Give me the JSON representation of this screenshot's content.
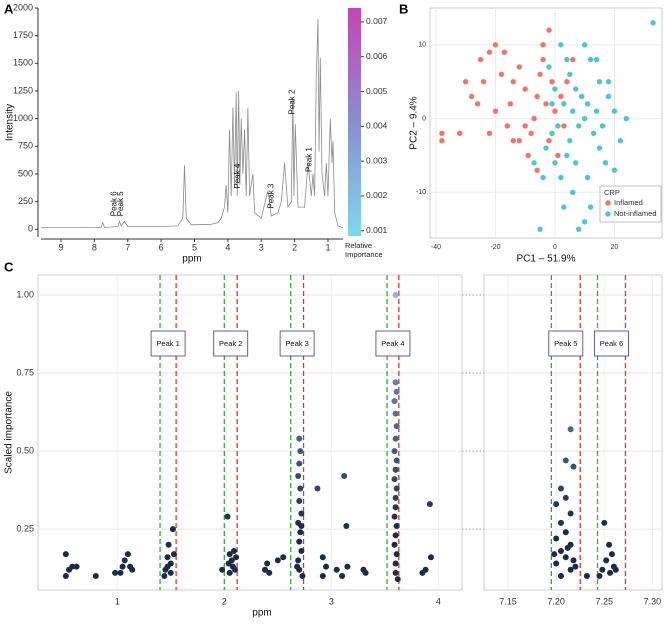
{
  "chart_data": [
    {
      "type": "line",
      "panel_label": "A",
      "x_label": "ppm",
      "y_label": "Intensity",
      "color": "#8c8c8c",
      "x": [
        9.6,
        9.0,
        8.5,
        8.0,
        7.8,
        7.75,
        7.7,
        7.5,
        7.3,
        7.25,
        7.2,
        7.1,
        7.0,
        6.5,
        6.0,
        5.5,
        5.35,
        5.3,
        5.25,
        5.1,
        4.5,
        4.3,
        4.2,
        4.1,
        4.05,
        4.0,
        3.95,
        3.9,
        3.85,
        3.8,
        3.75,
        3.72,
        3.68,
        3.64,
        3.6,
        3.55,
        3.5,
        3.45,
        3.4,
        3.35,
        3.25,
        3.2,
        3.0,
        2.8,
        2.7,
        2.5,
        2.4,
        2.3,
        2.2,
        2.1,
        2.05,
        2.02,
        1.98,
        1.9,
        1.7,
        1.6,
        1.5,
        1.45,
        1.4,
        1.35,
        1.3,
        1.27,
        1.23,
        1.18,
        1.1,
        1.05,
        1.0,
        0.93,
        0.88,
        0.85,
        0.8,
        0.7,
        0.55
      ],
      "values": [
        15,
        15,
        15,
        16,
        18,
        60,
        18,
        20,
        25,
        70,
        30,
        70,
        25,
        25,
        25,
        30,
        100,
        580,
        100,
        40,
        45,
        60,
        100,
        200,
        400,
        150,
        900,
        300,
        1100,
        400,
        1240,
        300,
        1250,
        400,
        1000,
        500,
        900,
        300,
        1100,
        300,
        500,
        150,
        100,
        350,
        120,
        150,
        250,
        600,
        200,
        250,
        1180,
        300,
        950,
        200,
        200,
        600,
        300,
        500,
        300,
        1400,
        1900,
        700,
        1550,
        500,
        300,
        600,
        300,
        1000,
        600,
        800,
        150,
        30,
        15
      ],
      "xlim": [
        9.6,
        0.55
      ],
      "xticks": [
        9,
        8,
        7,
        6,
        5,
        4,
        3,
        2,
        1
      ],
      "ylim": [
        -70,
        2000
      ],
      "yticks": [
        0,
        250,
        500,
        750,
        1000,
        1250,
        1500,
        1750,
        2000
      ],
      "annotations": [
        {
          "text": "Peak 1",
          "x": 1.55,
          "y": 630
        },
        {
          "text": "Peak 2",
          "x": 2.07,
          "y": 1150
        },
        {
          "text": "Peak 3",
          "x": 2.7,
          "y": 300
        },
        {
          "text": "Peak 4",
          "x": 3.7,
          "y": 480
        },
        {
          "text": "Peak 5",
          "x": 7.2,
          "y": 230
        },
        {
          "text": "Peak 6",
          "x": 7.4,
          "y": 230
        }
      ],
      "colorbar": {
        "label": "Relative Importance",
        "lim": [
          0.00085,
          0.0074
        ],
        "ticks": [
          0.001,
          0.002,
          0.003,
          0.004,
          0.005,
          0.006,
          0.007
        ],
        "colors": [
          "#7fd8ea",
          "#8a8ed0",
          "#c445b5"
        ]
      }
    },
    {
      "type": "scatter",
      "panel_label": "B",
      "x_label": "PC1 – 51.9%",
      "y_label": "PC2 – 9.4%",
      "xlim": [
        -42,
        36
      ],
      "xticks": [
        -40,
        -20,
        0,
        20
      ],
      "ylim": [
        -16.2,
        15
      ],
      "yticks": [
        -10,
        0,
        10
      ],
      "grid": true,
      "legend_title": "CRP",
      "legend": "bottom-right",
      "series": [
        {
          "name": "Inflamed",
          "color": "#f0746b",
          "x": [
            -38,
            -38,
            -32,
            -30,
            -28,
            -26,
            -25,
            -22,
            -20,
            -18,
            -17,
            -15,
            -14,
            -12,
            -10,
            -10,
            -8,
            -7,
            -6,
            -5,
            -4,
            -3,
            -2,
            -1,
            0,
            1,
            2,
            4,
            -12,
            -16,
            -20,
            -22,
            -9,
            -6,
            -4,
            -2,
            3,
            6,
            -24,
            -14
          ],
          "values": [
            -2,
            -3,
            -2,
            5,
            3,
            2,
            8,
            9,
            10,
            6,
            9,
            2,
            5,
            7,
            4,
            -1,
            -2,
            0,
            3,
            6,
            8,
            2,
            -3,
            5,
            1,
            -5,
            3,
            5,
            -3,
            -1,
            1,
            -2,
            -5,
            -7,
            10,
            12,
            -1,
            8,
            5,
            -3
          ]
        },
        {
          "name": "Not-inflamed",
          "color": "#4fc6cb",
          "x": [
            33,
            10,
            12,
            15,
            18,
            20,
            22,
            5,
            7,
            3,
            1,
            -1,
            -3,
            0,
            2,
            5,
            8,
            10,
            13,
            15,
            17,
            20,
            6,
            -5,
            8,
            10,
            12,
            4,
            9,
            11,
            14,
            16,
            4,
            2,
            -2,
            0,
            6,
            -4,
            -7,
            3,
            14,
            18,
            24,
            7,
            11,
            -1
          ],
          "values": [
            13,
            10,
            8,
            5,
            3,
            1,
            -3,
            6,
            4,
            2,
            -1,
            -2,
            -4,
            -6,
            -8,
            -3,
            -1,
            0,
            -2,
            -4,
            -6,
            -7,
            -10,
            -15,
            -15,
            -14,
            -12,
            -5,
            3,
            2,
            1,
            -1,
            8,
            10,
            7,
            4,
            1,
            -8,
            -6,
            -12,
            8,
            5,
            0,
            -6,
            -8,
            2
          ]
        }
      ]
    },
    {
      "type": "scatter",
      "panel_label": "C",
      "x_label": "ppm",
      "y_label": "Scaled importance",
      "ylim": [
        0.055,
        1.064
      ],
      "yticks": [
        {
          "value": 0.25,
          "label": "0.25"
        },
        {
          "value": 0.5,
          "label": "0.50"
        },
        {
          "value": 0.75,
          "label": "0.75"
        },
        {
          "value": 1,
          "label": "1.00"
        }
      ],
      "grid": true,
      "low_color": "#1c2b48",
      "high_color": "#8fb3e3",
      "start_color": "#3aa63a",
      "end_color": "#e0352b",
      "panels": [
        {
          "xlim": [
            0.26,
            4.22
          ],
          "xticks": [
            1,
            2,
            3,
            4
          ],
          "x": [
            0.52,
            0.55,
            0.58,
            0.52,
            0.62,
            0.8,
            0.98,
            1.03,
            1.07,
            1.1,
            1.12,
            1.14,
            1.05,
            1.45,
            1.47,
            1.48,
            1.5,
            1.52,
            1.5,
            1.47,
            1.53,
            1.44,
            2.03,
            2.05,
            2.07,
            2.08,
            2.1,
            2.05,
            2.09,
            2.04,
            2.11,
            1.98,
            2.4,
            2.42,
            2.38,
            2.5,
            2.55,
            2.7,
            2.71,
            2.7,
            2.69,
            2.71,
            2.7,
            2.72,
            2.69,
            2.71,
            2.7,
            2.72,
            2.69,
            2.7,
            2.73,
            2.68,
            2.72,
            2.87,
            2.92,
            2.95,
            2.92,
            3.05,
            3.1,
            3.12,
            3.14,
            3.15,
            3.3,
            3.32,
            3.6,
            3.6,
            3.61,
            3.59,
            3.6,
            3.61,
            3.6,
            3.59,
            3.61,
            3.6,
            3.59,
            3.61,
            3.6,
            3.6,
            3.59,
            3.61,
            3.6,
            3.59,
            3.61,
            3.6,
            3.6,
            3.62,
            3.85,
            3.88,
            3.92,
            3.93
          ],
          "values": [
            0.17,
            0.12,
            0.13,
            0.1,
            0.13,
            0.1,
            0.11,
            0.11,
            0.15,
            0.17,
            0.13,
            0.12,
            0.13,
            0.12,
            0.16,
            0.2,
            0.14,
            0.25,
            0.11,
            0.13,
            0.17,
            0.1,
            0.29,
            0.17,
            0.15,
            0.13,
            0.12,
            0.11,
            0.18,
            0.14,
            0.16,
            0.12,
            0.14,
            0.11,
            0.12,
            0.15,
            0.16,
            0.54,
            0.5,
            0.46,
            0.42,
            0.38,
            0.34,
            0.3,
            0.27,
            0.24,
            0.21,
            0.18,
            0.15,
            0.12,
            0.1,
            0.13,
            0.26,
            0.38,
            0.16,
            0.13,
            0.1,
            0.12,
            0.1,
            0.42,
            0.26,
            0.13,
            0.12,
            0.11,
            1.0,
            0.72,
            0.69,
            0.66,
            0.62,
            0.58,
            0.54,
            0.5,
            0.47,
            0.44,
            0.41,
            0.38,
            0.35,
            0.32,
            0.29,
            0.26,
            0.23,
            0.2,
            0.17,
            0.14,
            0.11,
            0.09,
            0.11,
            0.12,
            0.33,
            0.16
          ]
        },
        {
          "xlim": [
            7.125,
            7.31
          ],
          "xticks": [
            {
              "value": 7.15,
              "label": "7.15"
            },
            {
              "value": 7.2,
              "label": "7.20"
            },
            {
              "value": 7.25,
              "label": "7.25"
            },
            {
              "value": 7.3,
              "label": "7.30"
            }
          ],
          "x": [
            7.215,
            7.21,
            7.218,
            7.205,
            7.21,
            7.2,
            7.215,
            7.205,
            7.21,
            7.2,
            7.215,
            7.205,
            7.21,
            7.2,
            7.215,
            7.205,
            7.22,
            7.198,
            7.212,
            7.218,
            7.232,
            7.25,
            7.255,
            7.258,
            7.252,
            7.26,
            7.248,
            7.256,
            7.262,
            7.245
          ],
          "values": [
            0.57,
            0.47,
            0.45,
            0.38,
            0.35,
            0.33,
            0.3,
            0.27,
            0.24,
            0.22,
            0.2,
            0.18,
            0.16,
            0.14,
            0.12,
            0.1,
            0.13,
            0.17,
            0.19,
            0.15,
            0.1,
            0.27,
            0.2,
            0.17,
            0.15,
            0.13,
            0.12,
            0.11,
            0.12,
            0.1
          ]
        }
      ],
      "peaks": [
        {
          "label": "Peak 1",
          "start": 1.4,
          "end": 1.55,
          "panel": 0
        },
        {
          "label": "Peak 2",
          "start": 2.0,
          "end": 2.12,
          "panel": 0
        },
        {
          "label": "Peak 3",
          "start": 2.62,
          "end": 2.74,
          "panel": 0
        },
        {
          "label": "Peak 4",
          "start": 3.52,
          "end": 3.63,
          "panel": 0
        },
        {
          "label": "Peak 5",
          "start": 7.195,
          "end": 7.225,
          "panel": 1
        },
        {
          "label": "Peak 6",
          "start": 7.243,
          "end": 7.272,
          "panel": 1
        }
      ]
    }
  ]
}
